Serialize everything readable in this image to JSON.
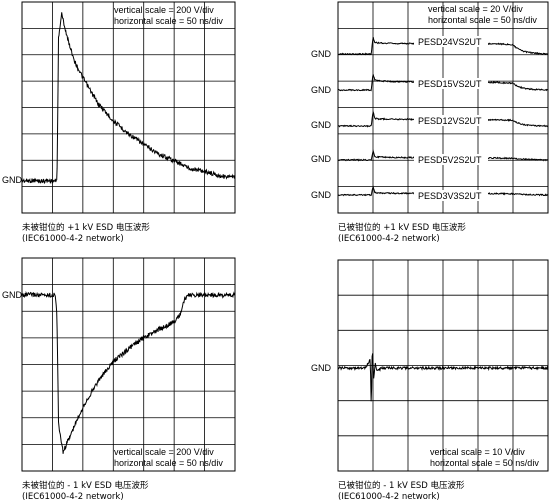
{
  "chart_data": [
    {
      "type": "line",
      "id": "unclamped_pos",
      "annotations": [
        "vertical scale = 200 V/div",
        "horizontal scale = 50 ns/div"
      ],
      "caption": [
        "未被钳位的 +1 kV ESD 电压波形",
        "(IEC61000-4-2 network)"
      ],
      "ylabel": "GND",
      "grid": true,
      "x_divisions": 7,
      "y_divisions": 8,
      "x": [
        0,
        0.2,
        0.4,
        0.6,
        0.8,
        1.0,
        1.15,
        1.2,
        1.3,
        1.5,
        1.75,
        2.0,
        2.5,
        3.0,
        3.5,
        4.0,
        4.5,
        5.0,
        5.5,
        6.0,
        6.5,
        7.0
      ],
      "y": [
        0.02,
        0.0,
        0.03,
        -0.01,
        0.02,
        0.0,
        0.0,
        6.6,
        7.8,
        6.6,
        5.5,
        4.8,
        3.6,
        2.8,
        2.2,
        1.7,
        1.25,
        0.95,
        0.6,
        0.45,
        0.25,
        0.15
      ]
    },
    {
      "type": "line",
      "id": "clamped_pos",
      "annotations": [
        "vertical scale = 20 V/div",
        "horizontal scale = 50 ns/div"
      ],
      "caption": [
        "已被钳位的 +1 kV ESD 电压波形",
        "(IEC61000-4-2 network)"
      ],
      "grid": true,
      "x_divisions": 6,
      "y_divisions": 8,
      "series": [
        {
          "name": "PESD24VS2UT",
          "gnd_label": "GND",
          "x": [
            0,
            0.95,
            1.0,
            1.05,
            1.15,
            1.5,
            3.0,
            4.5,
            5.0,
            5.1,
            5.3,
            5.6,
            6.0
          ],
          "y": [
            0,
            0,
            1.0,
            0.7,
            0.65,
            0.62,
            0.6,
            0.6,
            0.55,
            0.35,
            0.15,
            0.05,
            0.0
          ]
        },
        {
          "name": "PESD15VS2UT",
          "gnd_label": "GND",
          "x": [
            0,
            0.95,
            1.0,
            1.05,
            1.15,
            1.5,
            3.0,
            4.5,
            5.0,
            5.1,
            5.3,
            5.6,
            6.0
          ],
          "y": [
            0,
            0,
            0.95,
            0.6,
            0.55,
            0.5,
            0.45,
            0.45,
            0.4,
            0.25,
            0.1,
            0.03,
            0.0
          ]
        },
        {
          "name": "PESD12VS2UT",
          "gnd_label": "GND",
          "x": [
            0,
            0.95,
            1.0,
            1.05,
            1.15,
            1.5,
            3.0,
            4.5,
            5.0,
            5.1,
            5.3,
            5.6,
            6.0
          ],
          "y": [
            0,
            0,
            0.9,
            0.45,
            0.42,
            0.4,
            0.38,
            0.36,
            0.34,
            0.2,
            0.08,
            0.02,
            0.0
          ]
        },
        {
          "name": "PESD5V2S2UT",
          "gnd_label": "GND",
          "x": [
            0,
            0.95,
            1.0,
            1.05,
            1.15,
            1.5,
            3.0,
            4.5,
            5.0,
            5.2,
            5.6,
            6.0
          ],
          "y": [
            0,
            0,
            0.55,
            0.2,
            0.18,
            0.15,
            0.14,
            0.12,
            0.1,
            0.06,
            0.02,
            0.0
          ]
        },
        {
          "name": "PESD3V3S2UT",
          "gnd_label": "GND",
          "x": [
            0,
            0.95,
            1.0,
            1.05,
            1.15,
            1.5,
            3.0,
            4.5,
            5.0,
            5.2,
            5.6,
            6.0
          ],
          "y": [
            0,
            0,
            0.5,
            0.15,
            0.12,
            0.1,
            0.09,
            0.08,
            0.07,
            0.04,
            0.01,
            0.0
          ]
        }
      ]
    },
    {
      "type": "line",
      "id": "unclamped_neg",
      "annotations": [
        "vertical scale = 200 V/div",
        "horizontal scale = 50 ns/div"
      ],
      "caption": [
        "未被钳位的 - 1 kV ESD 电压波形",
        "(IEC61000-4-2 network)"
      ],
      "ylabel": "GND",
      "grid": true,
      "x_divisions": 7,
      "y_divisions": 8,
      "x": [
        0,
        0.3,
        0.6,
        0.9,
        1.0,
        1.1,
        1.15,
        1.2,
        1.35,
        1.6,
        2.0,
        2.5,
        3.0,
        3.5,
        4.0,
        4.5,
        5.0,
        5.2,
        5.35,
        5.5,
        6.0,
        6.5,
        7.0
      ],
      "y": [
        0,
        0.02,
        -0.01,
        0.0,
        0.0,
        0.0,
        -1.0,
        -6.0,
        -7.3,
        -6.5,
        -5.2,
        -4.0,
        -3.1,
        -2.5,
        -2.0,
        -1.6,
        -1.25,
        -0.9,
        -0.15,
        0.0,
        0.02,
        -0.01,
        0.0
      ]
    },
    {
      "type": "line",
      "id": "clamped_neg",
      "annotations": [
        "vertical scale = 10 V/div",
        "horizontal scale = 50 ns/div"
      ],
      "caption": [
        "已被钳位的 - 1 kV ESD 电压波形",
        "(IEC61000-4-2 network)"
      ],
      "ylabel": "GND",
      "grid": true,
      "x_divisions": 6,
      "y_divisions": 6,
      "x": [
        0,
        0.8,
        0.92,
        0.95,
        0.98,
        1.02,
        1.06,
        1.12,
        1.25,
        1.6,
        2.5,
        4.0,
        6.0
      ],
      "y": [
        0,
        0,
        0.6,
        -2.6,
        1.4,
        -0.7,
        0.3,
        -0.2,
        0.0,
        0.0,
        0.0,
        0.0,
        0.0
      ]
    }
  ]
}
